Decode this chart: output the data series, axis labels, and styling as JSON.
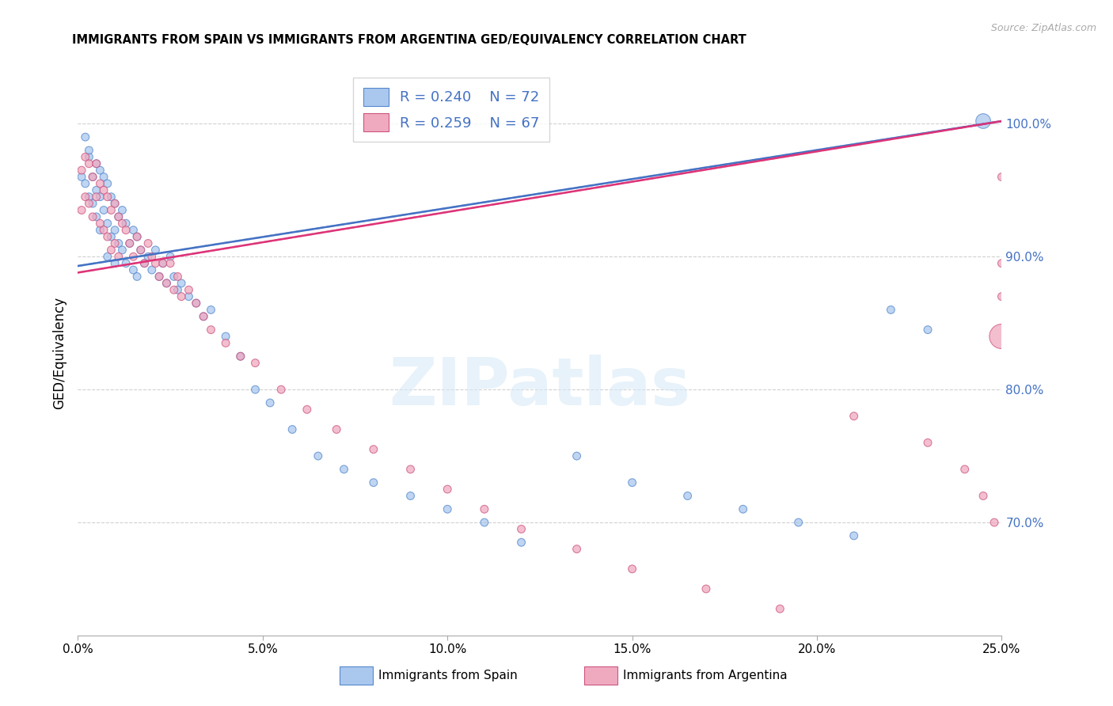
{
  "title": "IMMIGRANTS FROM SPAIN VS IMMIGRANTS FROM ARGENTINA GED/EQUIVALENCY CORRELATION CHART",
  "source": "Source: ZipAtlas.com",
  "ylabel": "GED/Equivalency",
  "color_spain_fill": "#aac8ee",
  "color_spain_edge": "#5588cc",
  "color_argentina_fill": "#f0aac0",
  "color_argentina_edge": "#cc5580",
  "color_spain_line": "#4472C4",
  "color_argentina_line": "#dd3377",
  "color_right_axis": "#4472C4",
  "legend_r_spain": "R = 0.240",
  "legend_n_spain": "N = 72",
  "legend_r_argentina": "R = 0.259",
  "legend_n_argentina": "N = 67",
  "xmin": 0.0,
  "xmax": 0.25,
  "ymin": 0.615,
  "ymax": 1.04,
  "watermark_text": "ZIPatlas",
  "bottom_legend_spain": "Immigrants from Spain",
  "bottom_legend_argentina": "Immigrants from Argentina",
  "spain_x": [
    0.001,
    0.002,
    0.002,
    0.003,
    0.003,
    0.003,
    0.004,
    0.004,
    0.005,
    0.005,
    0.005,
    0.006,
    0.006,
    0.006,
    0.007,
    0.007,
    0.008,
    0.008,
    0.008,
    0.009,
    0.009,
    0.01,
    0.01,
    0.01,
    0.011,
    0.011,
    0.012,
    0.012,
    0.013,
    0.013,
    0.014,
    0.015,
    0.015,
    0.016,
    0.016,
    0.017,
    0.018,
    0.019,
    0.02,
    0.021,
    0.022,
    0.023,
    0.024,
    0.025,
    0.026,
    0.027,
    0.028,
    0.03,
    0.032,
    0.034,
    0.036,
    0.04,
    0.044,
    0.048,
    0.052,
    0.058,
    0.065,
    0.072,
    0.08,
    0.09,
    0.1,
    0.11,
    0.12,
    0.135,
    0.15,
    0.165,
    0.18,
    0.195,
    0.21,
    0.22,
    0.23,
    0.245
  ],
  "spain_y": [
    0.96,
    0.99,
    0.955,
    0.975,
    0.945,
    0.98,
    0.94,
    0.96,
    0.97,
    0.95,
    0.93,
    0.965,
    0.945,
    0.92,
    0.96,
    0.935,
    0.955,
    0.925,
    0.9,
    0.945,
    0.915,
    0.94,
    0.92,
    0.895,
    0.93,
    0.91,
    0.935,
    0.905,
    0.925,
    0.895,
    0.91,
    0.92,
    0.89,
    0.915,
    0.885,
    0.905,
    0.895,
    0.9,
    0.89,
    0.905,
    0.885,
    0.895,
    0.88,
    0.9,
    0.885,
    0.875,
    0.88,
    0.87,
    0.865,
    0.855,
    0.86,
    0.84,
    0.825,
    0.8,
    0.79,
    0.77,
    0.75,
    0.74,
    0.73,
    0.72,
    0.71,
    0.7,
    0.685,
    0.75,
    0.73,
    0.72,
    0.71,
    0.7,
    0.69,
    0.86,
    0.845,
    1.002
  ],
  "spain_sizes": [
    50,
    50,
    50,
    50,
    50,
    50,
    50,
    50,
    50,
    50,
    50,
    50,
    50,
    50,
    50,
    50,
    50,
    50,
    50,
    50,
    50,
    50,
    50,
    50,
    50,
    50,
    50,
    50,
    50,
    50,
    50,
    50,
    50,
    50,
    50,
    50,
    50,
    50,
    50,
    50,
    50,
    50,
    50,
    50,
    50,
    50,
    50,
    50,
    50,
    50,
    50,
    50,
    50,
    50,
    50,
    50,
    50,
    50,
    50,
    50,
    50,
    50,
    50,
    50,
    50,
    50,
    50,
    50,
    50,
    50,
    50,
    180
  ],
  "argentina_x": [
    0.001,
    0.001,
    0.002,
    0.002,
    0.003,
    0.003,
    0.004,
    0.004,
    0.005,
    0.005,
    0.006,
    0.006,
    0.007,
    0.007,
    0.008,
    0.008,
    0.009,
    0.009,
    0.01,
    0.01,
    0.011,
    0.011,
    0.012,
    0.013,
    0.014,
    0.015,
    0.016,
    0.017,
    0.018,
    0.019,
    0.02,
    0.021,
    0.022,
    0.023,
    0.024,
    0.025,
    0.026,
    0.027,
    0.028,
    0.03,
    0.032,
    0.034,
    0.036,
    0.04,
    0.044,
    0.048,
    0.055,
    0.062,
    0.07,
    0.08,
    0.09,
    0.1,
    0.11,
    0.12,
    0.135,
    0.15,
    0.17,
    0.19,
    0.21,
    0.23,
    0.24,
    0.245,
    0.248,
    0.25,
    0.25,
    0.25,
    0.25
  ],
  "argentina_y": [
    0.965,
    0.935,
    0.975,
    0.945,
    0.97,
    0.94,
    0.96,
    0.93,
    0.97,
    0.945,
    0.955,
    0.925,
    0.95,
    0.92,
    0.945,
    0.915,
    0.935,
    0.905,
    0.94,
    0.91,
    0.93,
    0.9,
    0.925,
    0.92,
    0.91,
    0.9,
    0.915,
    0.905,
    0.895,
    0.91,
    0.9,
    0.895,
    0.885,
    0.895,
    0.88,
    0.895,
    0.875,
    0.885,
    0.87,
    0.875,
    0.865,
    0.855,
    0.845,
    0.835,
    0.825,
    0.82,
    0.8,
    0.785,
    0.77,
    0.755,
    0.74,
    0.725,
    0.71,
    0.695,
    0.68,
    0.665,
    0.65,
    0.635,
    0.78,
    0.76,
    0.74,
    0.72,
    0.7,
    0.96,
    0.895,
    0.87,
    0.84
  ],
  "argentina_sizes": [
    50,
    50,
    50,
    50,
    50,
    50,
    50,
    50,
    50,
    50,
    50,
    50,
    50,
    50,
    50,
    50,
    50,
    50,
    50,
    50,
    50,
    50,
    50,
    50,
    50,
    50,
    50,
    50,
    50,
    50,
    50,
    50,
    50,
    50,
    50,
    50,
    50,
    50,
    50,
    50,
    50,
    50,
    50,
    50,
    50,
    50,
    50,
    50,
    50,
    50,
    50,
    50,
    50,
    50,
    50,
    50,
    50,
    50,
    50,
    50,
    50,
    50,
    50,
    50,
    50,
    50,
    500
  ]
}
